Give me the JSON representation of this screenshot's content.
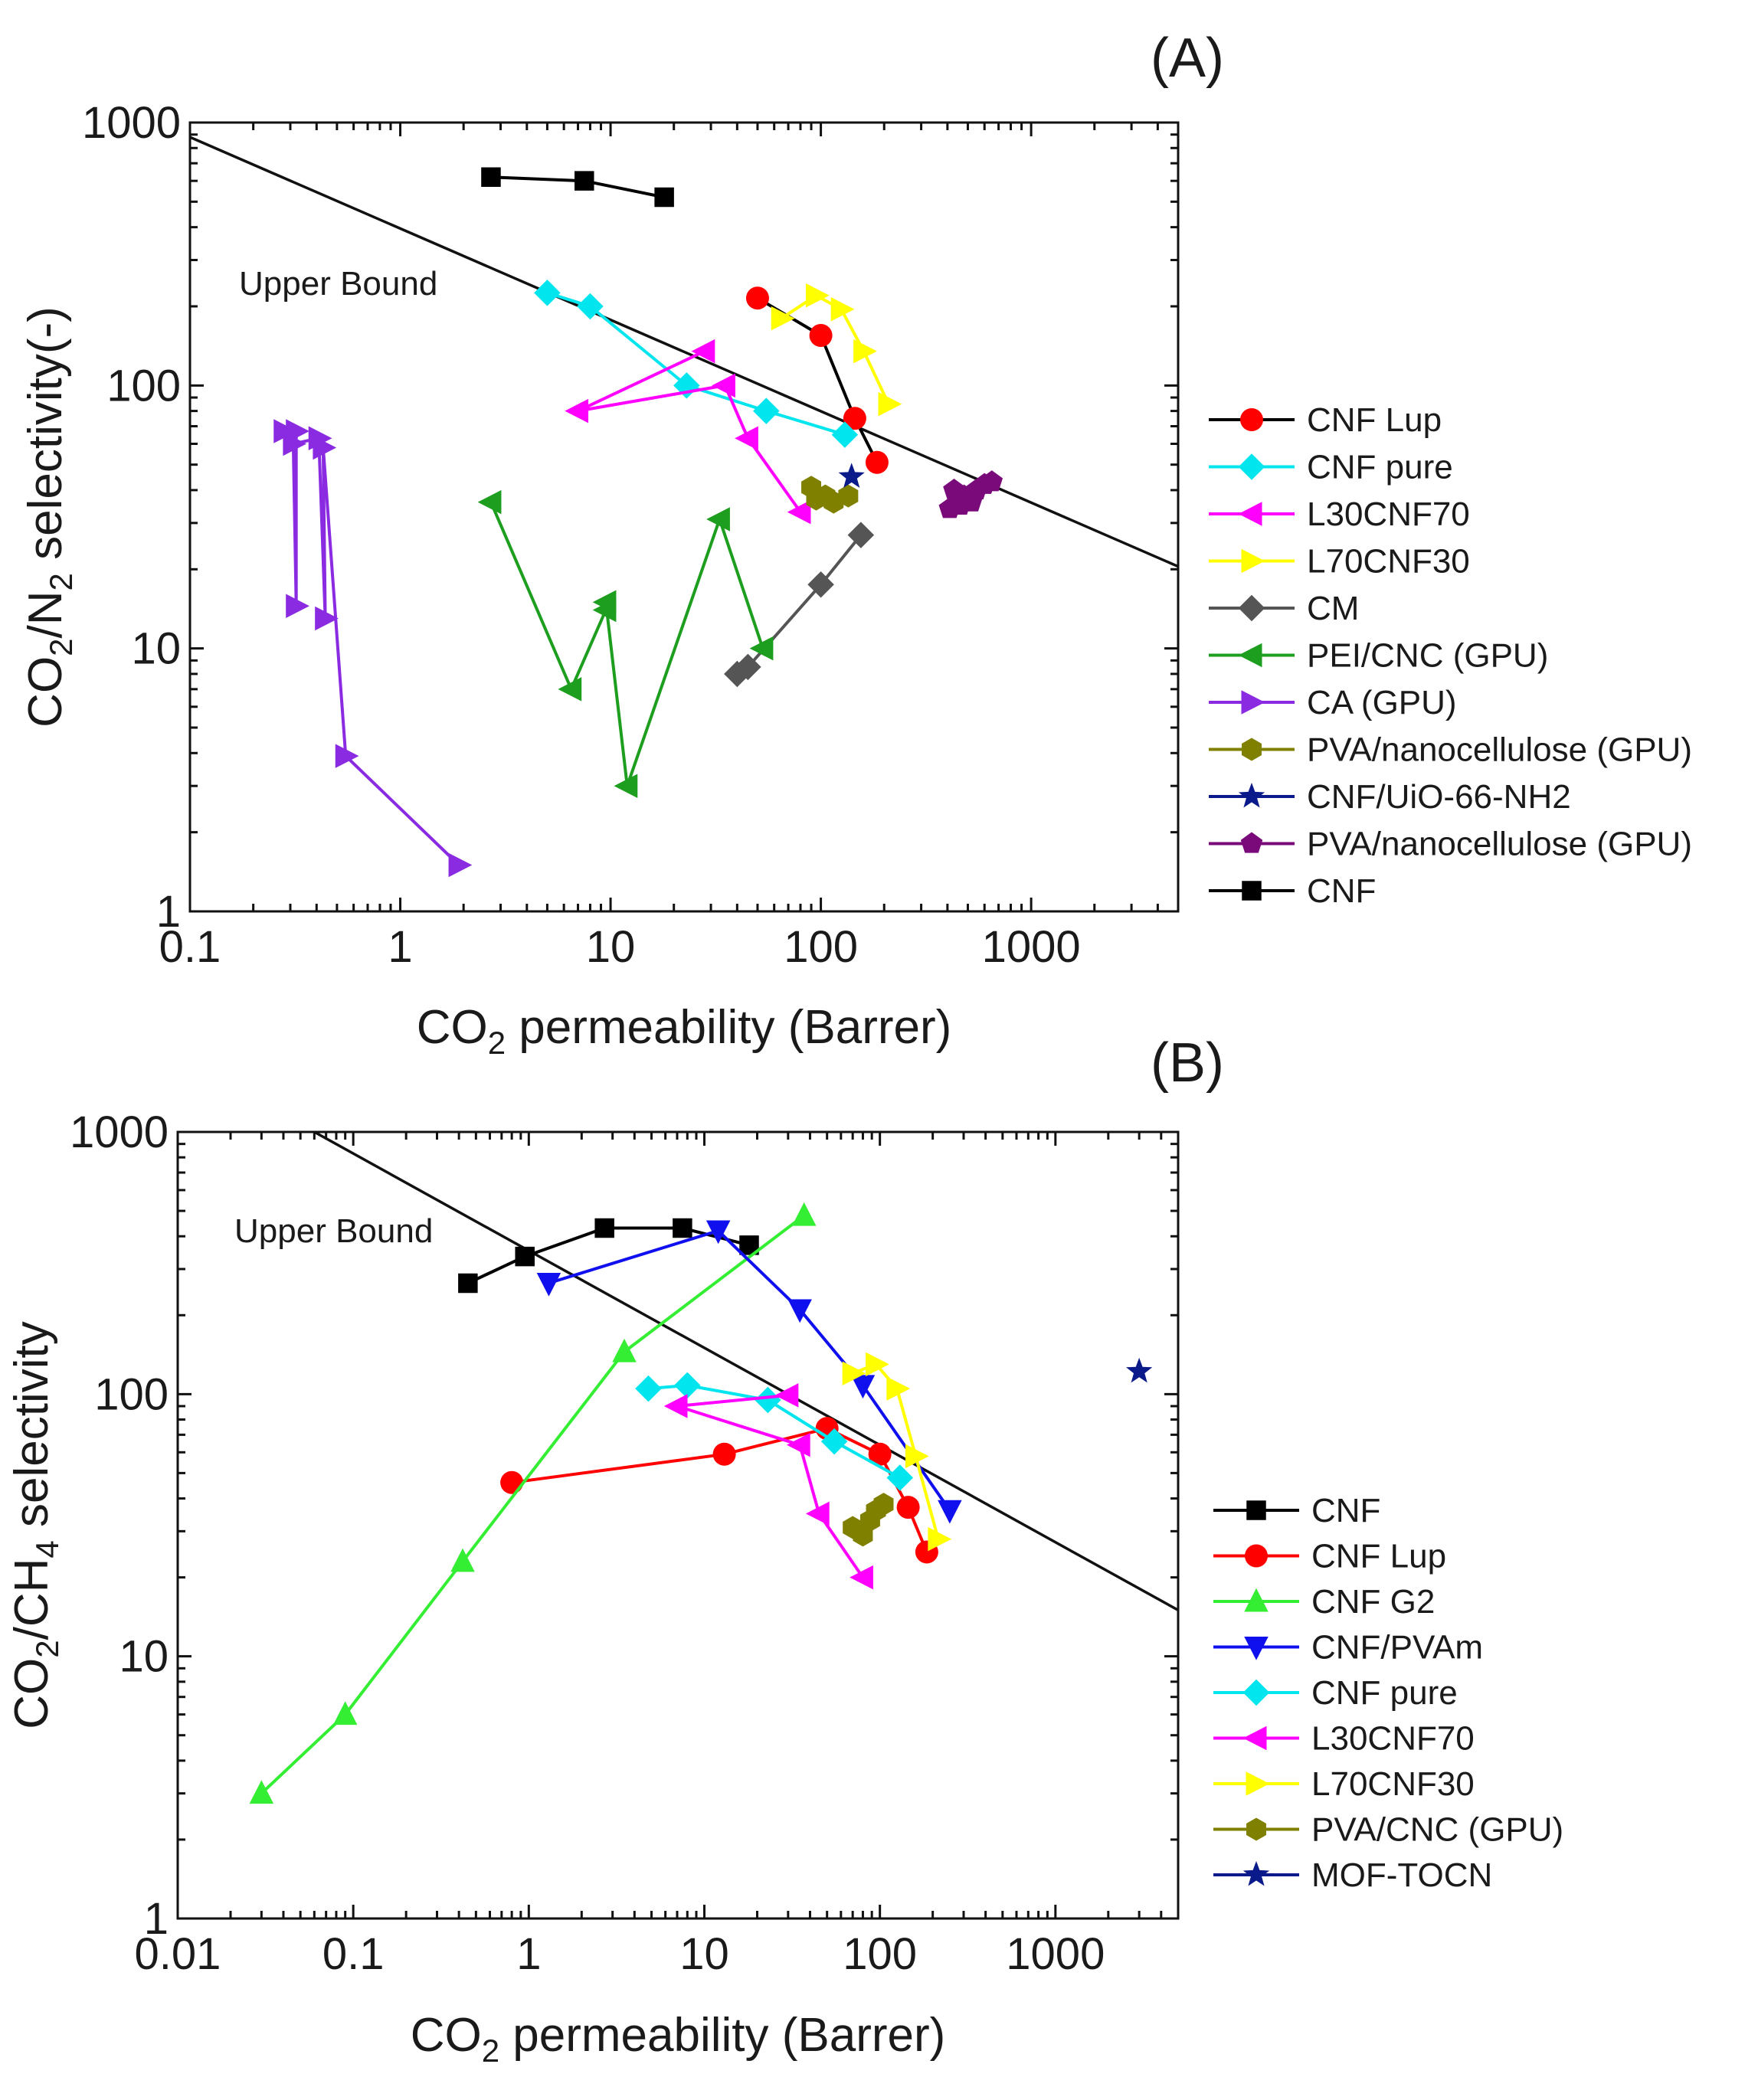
{
  "chart_data": [
    {
      "panel_label": "(A)",
      "type": "scatter",
      "xscale": "log",
      "yscale": "log",
      "xlim": [
        0.1,
        5000
      ],
      "ylim": [
        1,
        1000
      ],
      "xticks": [
        "0.1",
        "1",
        "10",
        "100",
        "1000"
      ],
      "yticks": [
        "1",
        "10",
        "100",
        "1000"
      ],
      "xlabel": {
        "pre": "CO",
        "sub": "2",
        "post": " permeability (Barrer)"
      },
      "ylabel": {
        "a": "CO",
        "sub1": "2",
        "b": "/N",
        "sub2": "2",
        "c": " selectivity(-)"
      },
      "upper_bound": {
        "label": "Upper Bound",
        "x": [
          0.1,
          5000
        ],
        "y": [
          880,
          20.5
        ]
      },
      "legend_position": "right, outside plot",
      "series": [
        {
          "name": "CNF Lup",
          "marker": "circle",
          "color": "#ff0000",
          "line_color": "#000000",
          "points": [
            [
              50,
              215
            ],
            [
              100,
              155
            ],
            [
              145,
              75
            ],
            [
              185,
              51
            ]
          ]
        },
        {
          "name": "CNF pure",
          "marker": "diamond",
          "color": "#00e5ee",
          "line_color": "#00e5ee",
          "points": [
            [
              5,
              225
            ],
            [
              8,
              200
            ],
            [
              23,
              100
            ],
            [
              55,
              80
            ],
            [
              130,
              65
            ]
          ]
        },
        {
          "name": "L30CNF70",
          "marker": "triangle-left",
          "color": "#ff00ff",
          "line_color": "#ff00ff",
          "points": [
            [
              28,
              135
            ],
            [
              7,
              80
            ],
            [
              35,
              100
            ],
            [
              45,
              63
            ],
            [
              80,
              33
            ]
          ]
        },
        {
          "name": "L70CNF30",
          "marker": "triangle-right",
          "color": "#ffff00",
          "line_color": "#ffff00",
          "points": [
            [
              65,
              180
            ],
            [
              95,
              220
            ],
            [
              125,
              195
            ],
            [
              160,
              135
            ],
            [
              210,
              85
            ]
          ]
        },
        {
          "name": "CM",
          "marker": "diamond",
          "color": "#555555",
          "line_color": "#555555",
          "points": [
            [
              40,
              8
            ],
            [
              45,
              8.5
            ],
            [
              100,
              17.5
            ],
            [
              155,
              27
            ]
          ]
        },
        {
          "name": "PEI/CNC (GPU)",
          "marker": "triangle-left",
          "color": "#1e9e1e",
          "line_color": "#1e9e1e",
          "points": [
            [
              2.7,
              36
            ],
            [
              6.5,
              7
            ],
            [
              9.5,
              14
            ],
            [
              9.5,
              15
            ],
            [
              12,
              3
            ],
            [
              33,
              31
            ],
            [
              53,
              10
            ]
          ]
        },
        {
          "name": "CA (GPU)",
          "marker": "triangle-right",
          "color": "#8a2be2",
          "line_color": "#8a2be2",
          "points": [
            [
              0.28,
              67
            ],
            [
              0.32,
              67
            ],
            [
              0.32,
              14.5
            ],
            [
              0.31,
              60
            ],
            [
              0.41,
              63
            ],
            [
              0.44,
              13
            ],
            [
              0.43,
              58
            ],
            [
              0.55,
              3.9
            ],
            [
              1.9,
              1.5
            ]
          ]
        },
        {
          "name": "PVA/nanocellulose (GPU)",
          "marker": "hexagon",
          "color": "#808000",
          "line_color": "#808000",
          "points": [
            [
              90,
              41
            ],
            [
              105,
              38
            ],
            [
              115,
              36
            ],
            [
              135,
              38
            ],
            [
              95,
              37
            ]
          ]
        },
        {
          "name": "CNF/UiO-66-NH2",
          "marker": "star",
          "color": "#0a1a8a",
          "line_color": "#0a1a8a",
          "points": [
            [
              140,
              45
            ]
          ]
        },
        {
          "name": "PVA/nanocellulose (GPU)",
          "marker": "pentagon",
          "color": "#7a0a7a",
          "line_color": "#7a0a7a",
          "points": [
            [
              410,
              34
            ],
            [
              430,
              40
            ],
            [
              480,
              38
            ],
            [
              520,
              36
            ],
            [
              550,
              40
            ],
            [
              600,
              42
            ],
            [
              650,
              43
            ],
            [
              460,
              35
            ]
          ]
        },
        {
          "name": "CNF",
          "marker": "square",
          "color": "#000000",
          "line_color": "#000000",
          "points": [
            [
              2.7,
              620
            ],
            [
              7.5,
              600
            ],
            [
              18,
              520
            ]
          ]
        }
      ]
    },
    {
      "panel_label": "(B)",
      "type": "scatter",
      "xscale": "log",
      "yscale": "log",
      "xlim": [
        0.01,
        5000
      ],
      "ylim": [
        1,
        1000
      ],
      "xticks": [
        "0.01",
        "0.1",
        "1",
        "10",
        "100",
        "1000"
      ],
      "yticks": [
        "1",
        "10",
        "100",
        "1000"
      ],
      "xlabel": {
        "pre": "CO",
        "sub": "2",
        "post": " permeability (Barrer)"
      },
      "ylabel": {
        "a": "CO",
        "sub1": "2",
        "b": "/CH",
        "sub2": "4",
        "c": " selectivity"
      },
      "upper_bound": {
        "label": "Upper Bound",
        "x": [
          0.06,
          5000
        ],
        "y": [
          1000,
          15
        ]
      },
      "legend_position": "bottom-right, outside plot",
      "series": [
        {
          "name": "CNF",
          "marker": "square",
          "color": "#000000",
          "line_color": "#000000",
          "points": [
            [
              0.45,
              265
            ],
            [
              0.95,
              335
            ],
            [
              2.7,
              430
            ],
            [
              7.5,
              430
            ],
            [
              18,
              370
            ]
          ]
        },
        {
          "name": "CNF Lup",
          "marker": "circle",
          "color": "#ff0000",
          "line_color": "#ff0000",
          "points": [
            [
              0.8,
              46
            ],
            [
              13,
              59
            ],
            [
              50,
              74
            ],
            [
              100,
              59
            ],
            [
              145,
              37
            ],
            [
              185,
              25
            ]
          ]
        },
        {
          "name": "CNF G2",
          "marker": "triangle-up",
          "color": "#33ee33",
          "line_color": "#33ee33",
          "points": [
            [
              0.03,
              3
            ],
            [
              0.09,
              6
            ],
            [
              0.42,
              23
            ],
            [
              3.5,
              145
            ],
            [
              37,
              480
            ]
          ]
        },
        {
          "name": "CNF/PVAm",
          "marker": "triangle-down",
          "color": "#1010ee",
          "line_color": "#1010ee",
          "points": [
            [
              1.3,
              265
            ],
            [
              12,
              420
            ],
            [
              35,
              210
            ],
            [
              80,
              108
            ],
            [
              250,
              36
            ]
          ]
        },
        {
          "name": "CNF pure",
          "marker": "diamond",
          "color": "#00e5ee",
          "line_color": "#00e5ee",
          "points": [
            [
              4.8,
              105
            ],
            [
              8,
              108
            ],
            [
              23,
              95
            ],
            [
              55,
              66
            ],
            [
              130,
              48
            ]
          ]
        },
        {
          "name": "L30CNF70",
          "marker": "triangle-left",
          "color": "#ff00ff",
          "line_color": "#ff00ff",
          "points": [
            [
              30,
              99
            ],
            [
              7,
              90
            ],
            [
              35,
              64
            ],
            [
              45,
              35
            ],
            [
              80,
              20
            ]
          ]
        },
        {
          "name": "L70CNF30",
          "marker": "triangle-right",
          "color": "#ffff00",
          "line_color": "#ffff00",
          "points": [
            [
              70,
              120
            ],
            [
              95,
              130
            ],
            [
              125,
              105
            ],
            [
              160,
              58
            ],
            [
              215,
              28
            ]
          ]
        },
        {
          "name": "PVA/CNC (GPU)",
          "marker": "hexagon",
          "color": "#808000",
          "line_color": "#808000",
          "points": [
            [
              70,
              31
            ],
            [
              80,
              29
            ],
            [
              88,
              33
            ],
            [
              95,
              36
            ],
            [
              105,
              38
            ]
          ]
        },
        {
          "name": "MOF-TOCN",
          "marker": "star",
          "color": "#0a1a8a",
          "line_color": "#0a1a8a",
          "points": [
            [
              3000,
              122
            ]
          ]
        }
      ]
    }
  ]
}
